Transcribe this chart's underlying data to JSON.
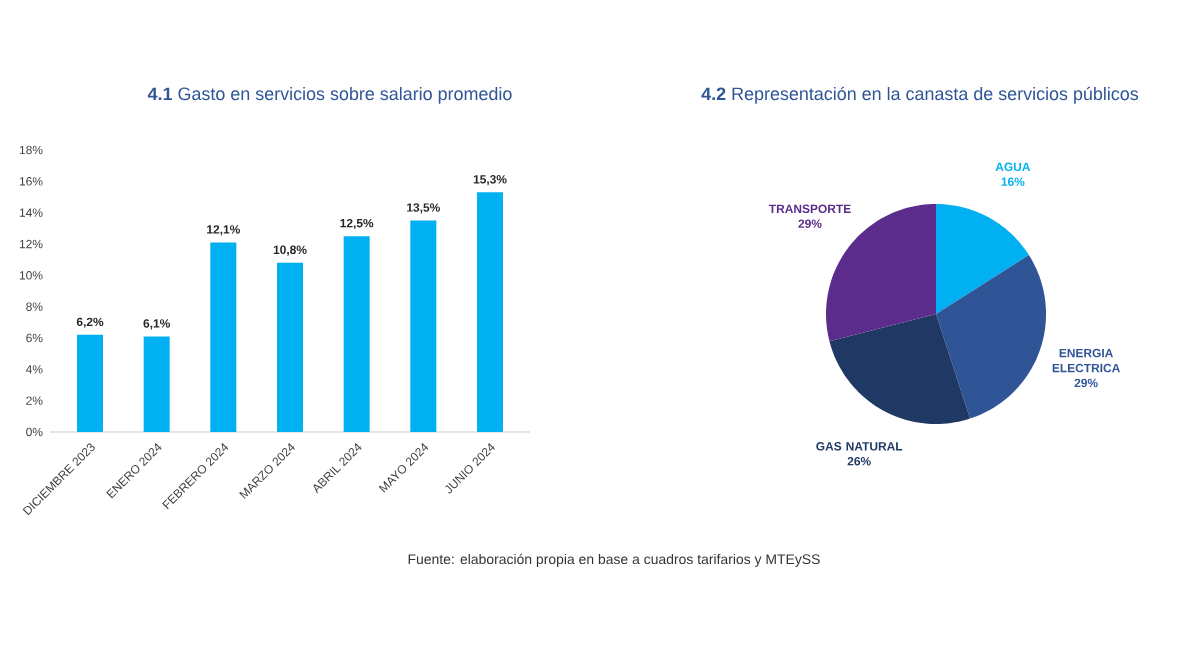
{
  "chart_data": [
    {
      "type": "bar",
      "title": "**4.1** Gasto en servicios sobre salario promedio",
      "categories": [
        "DICIEMBRE 2023",
        "ENERO 2024",
        "FEBRERO 2024",
        "MARZO 2024",
        "ABRIL 2024",
        "MAYO 2024",
        "JUNIO 2024"
      ],
      "values": [
        6.2,
        6.1,
        12.1,
        10.8,
        12.5,
        13.5,
        15.3
      ],
      "value_labels": [
        "6,2%",
        "6,1%",
        "12,1%",
        "10,8%",
        "12,5%",
        "13,5%",
        "15,3%"
      ],
      "color": "#00b0f0",
      "ylim": [
        0,
        18
      ],
      "yticks": [
        {
          "value": 0,
          "label": "0%"
        },
        {
          "value": 2,
          "label": "2%"
        },
        {
          "value": 4,
          "label": "4%"
        },
        {
          "value": 6,
          "label": "6%"
        },
        {
          "value": 8,
          "label": "8%"
        },
        {
          "value": 10,
          "label": "10%"
        },
        {
          "value": 12,
          "label": "12%"
        },
        {
          "value": 14,
          "label": "14%"
        },
        {
          "value": 16,
          "label": "16%"
        },
        {
          "value": 18,
          "label": "18%"
        }
      ]
    },
    {
      "type": "pie",
      "title": "**4.2** Representación en la canasta de servicios públicos",
      "categories": [
        "AGUA",
        "ENERGIA ELECTRICA",
        "GAS NATURAL",
        "TRANSPORTE"
      ],
      "values": [
        16,
        29,
        26,
        29
      ],
      "value_labels": [
        "16%",
        "29%",
        "26%",
        "29%"
      ],
      "colors": [
        "#00b0f0",
        "#2f5597",
        "#1f3864",
        "#5b2c8c"
      ],
      "annotations": [
        "Fuente: elaboración propia en base a cuadros tarifarios y MTEySS"
      ]
    }
  ]
}
